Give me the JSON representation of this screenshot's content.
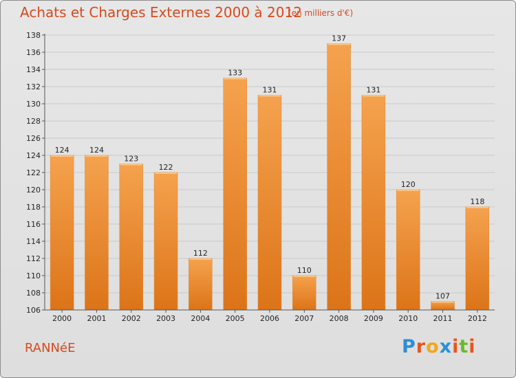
{
  "title": "Achats et Charges Externes 2000 à 2012",
  "subtitle": "(en milliers d'€)",
  "town": "RANNéE",
  "logo": {
    "letters": [
      "P",
      "r",
      "o",
      "x",
      "i",
      "t",
      "i"
    ],
    "colors": [
      "#2a8fd6",
      "#e8541e",
      "#f0a81c",
      "#2a8fd6",
      "#e8541e",
      "#6cba2c",
      "#e8541e"
    ]
  },
  "colors": {
    "bar_light": "#f5a24e",
    "bar_dark": "#dc7418",
    "accent": "#d54a1e"
  },
  "chart_data": {
    "type": "bar",
    "categories": [
      "2000",
      "2001",
      "2002",
      "2003",
      "2004",
      "2005",
      "2006",
      "2007",
      "2008",
      "2009",
      "2010",
      "2011",
      "2012"
    ],
    "values": [
      124,
      124,
      123,
      122,
      112,
      133,
      131,
      110,
      137,
      131,
      120,
      107,
      118
    ],
    "ylim": [
      106,
      138
    ],
    "yticks": [
      106,
      108,
      110,
      112,
      114,
      116,
      118,
      120,
      122,
      124,
      126,
      128,
      130,
      132,
      134,
      136,
      138
    ],
    "grid": true
  }
}
